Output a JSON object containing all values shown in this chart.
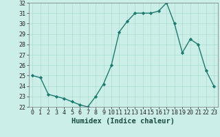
{
  "x": [
    0,
    1,
    2,
    3,
    4,
    5,
    6,
    7,
    8,
    9,
    10,
    11,
    12,
    13,
    14,
    15,
    16,
    17,
    18,
    19,
    20,
    21,
    22,
    23
  ],
  "y": [
    25.0,
    24.8,
    23.2,
    23.0,
    22.8,
    22.5,
    22.2,
    22.0,
    23.0,
    24.2,
    26.0,
    29.2,
    30.2,
    31.0,
    31.0,
    31.0,
    31.2,
    32.0,
    30.0,
    27.2,
    28.5,
    28.0,
    25.5,
    24.0
  ],
  "xlabel": "Humidex (Indice chaleur)",
  "ylim": [
    22,
    32
  ],
  "xlim": [
    -0.5,
    23.5
  ],
  "yticks": [
    22,
    23,
    24,
    25,
    26,
    27,
    28,
    29,
    30,
    31,
    32
  ],
  "xticks": [
    0,
    1,
    2,
    3,
    4,
    5,
    6,
    7,
    8,
    9,
    10,
    11,
    12,
    13,
    14,
    15,
    16,
    17,
    18,
    19,
    20,
    21,
    22,
    23
  ],
  "line_color": "#1a7a6e",
  "marker": "D",
  "marker_size": 2.2,
  "bg_color": "#cceee8",
  "grid_color": "#aaddcc",
  "tick_label_fontsize": 6.0,
  "xlabel_fontsize": 7.5,
  "linewidth": 1.0
}
